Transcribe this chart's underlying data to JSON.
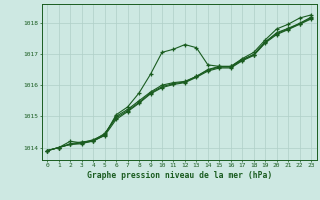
{
  "title": "Graphe pression niveau de la mer (hPa)",
  "background_color": "#cde8e2",
  "line_color": "#1a5c20",
  "grid_color": "#b0cfc8",
  "xlim": [
    -0.5,
    23.5
  ],
  "ylim": [
    1013.6,
    1018.6
  ],
  "yticks": [
    1014,
    1015,
    1016,
    1017,
    1018
  ],
  "xticks": [
    0,
    1,
    2,
    3,
    4,
    5,
    6,
    7,
    8,
    9,
    10,
    11,
    12,
    13,
    14,
    15,
    16,
    17,
    18,
    19,
    20,
    21,
    22,
    23
  ],
  "series": [
    [
      1013.9,
      1014.0,
      1014.2,
      1014.15,
      1014.2,
      1014.4,
      1015.05,
      1015.3,
      1015.75,
      1016.35,
      1017.05,
      1017.15,
      1017.3,
      1017.2,
      1016.65,
      1016.6,
      1016.6,
      1016.85,
      1017.05,
      1017.45,
      1017.8,
      1017.95,
      1018.15,
      1018.25
    ],
    [
      1013.9,
      1014.0,
      1014.1,
      1014.15,
      1014.25,
      1014.42,
      1015.0,
      1015.22,
      1015.5,
      1015.78,
      1016.0,
      1016.08,
      1016.12,
      1016.28,
      1016.5,
      1016.6,
      1016.6,
      1016.82,
      1016.98,
      1017.38,
      1017.68,
      1017.82,
      1017.98,
      1018.18
    ],
    [
      1013.9,
      1014.0,
      1014.1,
      1014.12,
      1014.22,
      1014.38,
      1014.9,
      1015.15,
      1015.42,
      1015.72,
      1015.92,
      1016.02,
      1016.08,
      1016.25,
      1016.45,
      1016.55,
      1016.55,
      1016.78,
      1016.95,
      1017.35,
      1017.62,
      1017.78,
      1017.95,
      1018.12
    ],
    [
      1013.9,
      1014.0,
      1014.12,
      1014.18,
      1014.22,
      1014.45,
      1014.95,
      1015.18,
      1015.45,
      1015.75,
      1015.95,
      1016.05,
      1016.1,
      1016.28,
      1016.48,
      1016.58,
      1016.58,
      1016.8,
      1016.98,
      1017.38,
      1017.65,
      1017.8,
      1017.97,
      1018.15
    ]
  ]
}
